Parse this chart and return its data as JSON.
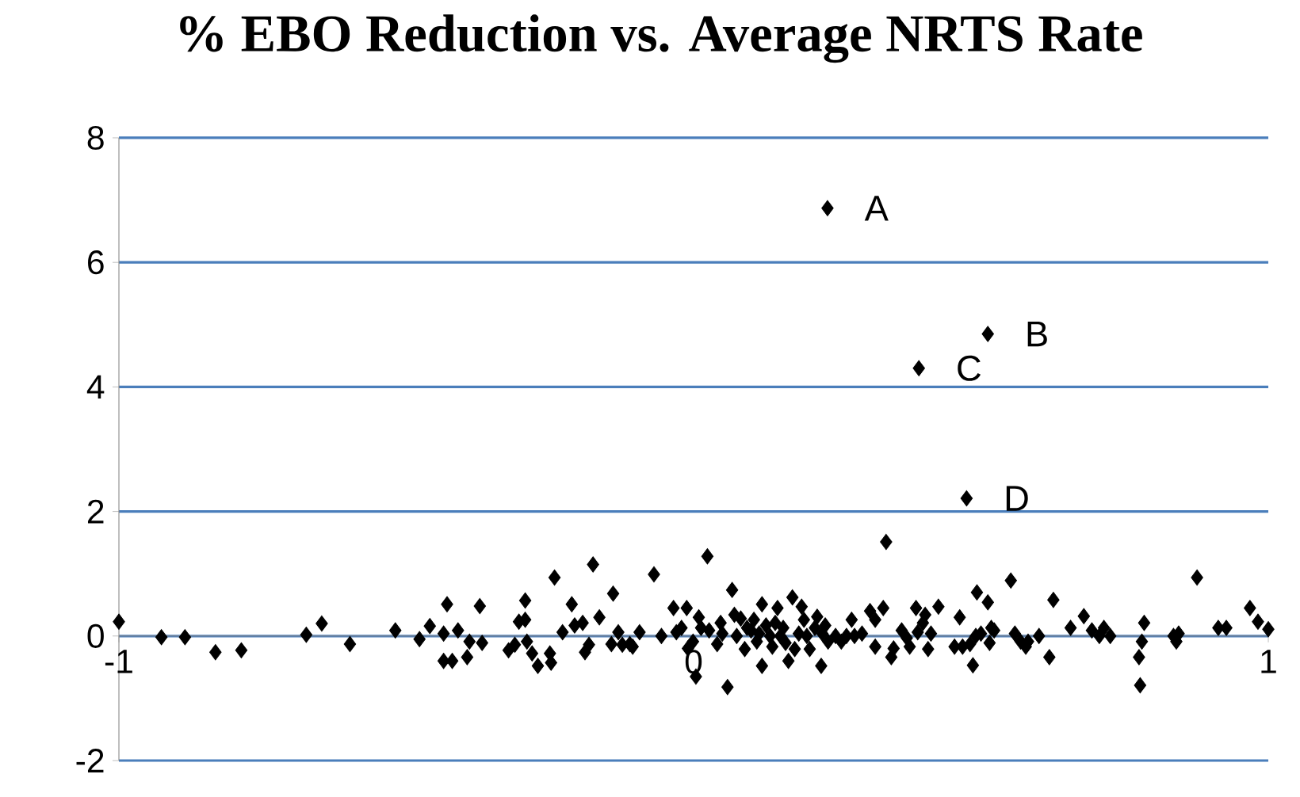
{
  "chart_data": {
    "type": "scatter",
    "title": "% EBO Reduction vs. Average NRTS Rate",
    "xlim": [
      -1,
      1
    ],
    "ylim": [
      -2,
      8
    ],
    "xticks": [
      -1,
      0,
      1
    ],
    "yticks": [
      -2,
      0,
      2,
      4,
      6,
      8
    ],
    "grid": "y",
    "marker": "diamond",
    "annotations": [
      {
        "text": "A",
        "x": 0.233,
        "y": 6.87
      },
      {
        "text": "B",
        "x": 0.512,
        "y": 4.85
      },
      {
        "text": "C",
        "x": 0.392,
        "y": 4.3
      },
      {
        "text": "D",
        "x": 0.475,
        "y": 2.21
      }
    ],
    "series": [
      {
        "color": "#000000",
        "x": [
          0.233,
          0.512,
          0.392,
          0.475,
          -1.0,
          -0.926,
          -0.885,
          -0.832,
          -0.787,
          -0.674,
          -0.647,
          -0.598,
          -0.519,
          -0.477,
          -0.459,
          -0.435,
          -0.429,
          -0.435,
          -0.42,
          -0.41,
          -0.394,
          -0.39,
          -0.372,
          -0.368,
          -0.322,
          -0.311,
          -0.304,
          -0.293,
          -0.293,
          -0.29,
          -0.281,
          -0.271,
          -0.248,
          -0.25,
          -0.242,
          -0.228,
          -0.212,
          -0.207,
          -0.193,
          -0.189,
          -0.182,
          -0.175,
          -0.164,
          -0.143,
          -0.14,
          -0.131,
          -0.124,
          -0.111,
          -0.106,
          -0.094,
          -0.069,
          -0.056,
          -0.035,
          -0.03,
          -0.021,
          -0.012,
          -0.01,
          -0.001,
          0.004,
          0.009,
          0.013,
          0.024,
          0.027,
          0.041,
          0.047,
          0.05,
          0.059,
          0.067,
          0.071,
          0.075,
          0.082,
          0.089,
          0.093,
          0.1,
          0.105,
          0.11,
          0.114,
          0.119,
          0.119,
          0.126,
          0.133,
          0.137,
          0.142,
          0.146,
          0.151,
          0.156,
          0.16,
          0.165,
          0.172,
          0.176,
          0.183,
          0.188,
          0.192,
          0.197,
          0.202,
          0.211,
          0.215,
          0.222,
          0.224,
          0.229,
          0.234,
          0.247,
          0.257,
          0.266,
          0.275,
          0.28,
          0.293,
          0.335,
          0.307,
          0.316,
          0.316,
          0.33,
          0.344,
          0.348,
          0.362,
          0.371,
          0.376,
          0.387,
          0.39,
          0.399,
          0.403,
          0.408,
          0.413,
          0.426,
          0.454,
          0.463,
          0.468,
          0.481,
          0.486,
          0.491,
          0.493,
          0.5,
          0.512,
          0.515,
          0.518,
          0.523,
          0.552,
          0.559,
          0.569,
          0.578,
          0.582,
          0.601,
          0.619,
          0.626,
          0.656,
          0.679,
          0.693,
          0.706,
          0.714,
          0.725,
          0.775,
          0.777,
          0.78,
          0.784,
          0.835,
          0.84,
          0.844,
          0.876,
          0.913,
          0.927,
          0.968,
          0.982,
          1.0
        ],
        "values": [
          6.87,
          4.85,
          4.3,
          2.21,
          0.23,
          -0.02,
          -0.02,
          -0.26,
          -0.23,
          0.02,
          0.2,
          -0.13,
          0.09,
          -0.05,
          0.16,
          0.04,
          0.51,
          -0.4,
          -0.4,
          0.09,
          -0.34,
          -0.09,
          0.48,
          -0.11,
          -0.23,
          -0.14,
          0.23,
          0.57,
          0.26,
          -0.09,
          -0.28,
          -0.48,
          -0.43,
          -0.28,
          0.94,
          0.06,
          0.51,
          0.17,
          0.21,
          -0.26,
          -0.14,
          1.15,
          0.3,
          -0.13,
          0.68,
          0.06,
          -0.14,
          -0.13,
          -0.17,
          0.06,
          0.99,
          0.0,
          0.45,
          0.06,
          0.13,
          0.45,
          -0.2,
          -0.09,
          -0.65,
          0.3,
          0.13,
          1.28,
          0.09,
          -0.13,
          0.21,
          0.04,
          -0.82,
          0.74,
          0.34,
          0.0,
          0.28,
          -0.21,
          0.13,
          0.09,
          0.26,
          -0.09,
          0.04,
          0.51,
          -0.48,
          0.17,
          0.0,
          -0.17,
          0.21,
          0.45,
          0.0,
          0.13,
          -0.11,
          -0.4,
          0.62,
          -0.21,
          0.04,
          0.47,
          0.26,
          0.0,
          -0.21,
          0.13,
          0.31,
          -0.48,
          0.04,
          0.17,
          -0.09,
          0.0,
          -0.09,
          0.0,
          0.26,
          0.0,
          0.04,
          1.51,
          0.4,
          0.26,
          -0.17,
          0.45,
          -0.34,
          -0.2,
          0.09,
          -0.03,
          -0.17,
          0.45,
          0.06,
          0.21,
          0.34,
          -0.21,
          0.04,
          0.47,
          -0.17,
          0.3,
          -0.17,
          -0.13,
          -0.47,
          0.0,
          0.7,
          0.04,
          0.54,
          -0.11,
          0.13,
          0.09,
          0.89,
          0.04,
          -0.09,
          -0.17,
          -0.09,
          0.0,
          -0.34,
          0.58,
          0.13,
          0.32,
          0.09,
          0.0,
          0.13,
          0.0,
          -0.34,
          -0.79,
          -0.09,
          0.21,
          0.0,
          -0.09,
          0.04,
          0.94,
          0.13,
          0.13,
          0.45,
          0.23,
          0.11
        ]
      }
    ]
  }
}
